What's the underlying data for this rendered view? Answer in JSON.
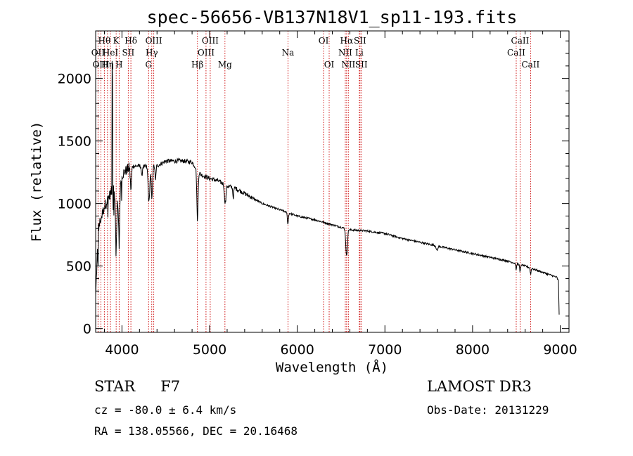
{
  "chart_data": {
    "type": "line",
    "title": "spec-56656-VB137N18V1_sp11-193.fits",
    "xlabel": "Wavelength (Å)",
    "ylabel": "Flux (relative)",
    "xlim": [
      3700,
      9100
    ],
    "ylim": [
      -30,
      2380
    ],
    "xticks": [
      4000,
      5000,
      6000,
      7000,
      8000,
      9000
    ],
    "yticks": [
      0,
      500,
      1000,
      1500,
      2000
    ],
    "x_minor_step": 200,
    "y_minor_step": 100,
    "grid": false,
    "colors": {
      "spectrum": "#000000",
      "line_markers": "#cc0000",
      "axes": "#000000"
    },
    "continuum": {
      "x": [
        3700,
        3730,
        3800,
        3870,
        3900,
        3950,
        4000,
        4100,
        4200,
        4300,
        4400,
        4500,
        4600,
        4700,
        4800,
        4900,
        5000,
        5100,
        5200,
        5300,
        5400,
        5600,
        5800,
        6000,
        6200,
        6400,
        6600,
        6800,
        7000,
        7200,
        7400,
        7600,
        7800,
        8000,
        8200,
        8400,
        8600,
        8800,
        8960,
        8980,
        8990
      ],
      "y": [
        250,
        800,
        980,
        1080,
        1120,
        1100,
        1230,
        1300,
        1300,
        1290,
        1300,
        1340,
        1340,
        1340,
        1330,
        1230,
        1200,
        1180,
        1140,
        1120,
        1080,
        1000,
        950,
        900,
        870,
        830,
        790,
        780,
        760,
        720,
        690,
        660,
        630,
        600,
        570,
        540,
        500,
        450,
        410,
        380,
        50
      ]
    },
    "absorption": [
      {
        "x": 3934,
        "w": 8,
        "d": 450
      },
      {
        "x": 3968,
        "w": 8,
        "d": 400
      },
      {
        "x": 4102,
        "w": 7,
        "d": 190
      },
      {
        "x": 4227,
        "w": 5,
        "d": 90
      },
      {
        "x": 4308,
        "w": 9,
        "d": 280
      },
      {
        "x": 4341,
        "w": 7,
        "d": 260
      },
      {
        "x": 4383,
        "w": 5,
        "d": 120
      },
      {
        "x": 4861,
        "w": 7,
        "d": 400
      },
      {
        "x": 5172,
        "w": 6,
        "d": 110
      },
      {
        "x": 5184,
        "w": 6,
        "d": 110
      },
      {
        "x": 5270,
        "w": 5,
        "d": 80
      },
      {
        "x": 5893,
        "w": 6,
        "d": 90
      },
      {
        "x": 6563,
        "w": 9,
        "d": 220
      },
      {
        "x": 7594,
        "w": 8,
        "d": 40
      },
      {
        "x": 8498,
        "w": 5,
        "d": 50
      },
      {
        "x": 8542,
        "w": 5,
        "d": 60
      },
      {
        "x": 8662,
        "w": 5,
        "d": 50
      }
    ],
    "spikes": [
      {
        "x": 3888,
        "h": 2140
      },
      {
        "x": 3892,
        "h": 2010
      }
    ],
    "noise": 22,
    "lines": [
      {
        "x": 3727,
        "label": "OII",
        "row": 1
      },
      {
        "x": 3760,
        "label": "OIII",
        "row": 2
      },
      {
        "x": 3799,
        "label": "Hθ",
        "row": 0
      },
      {
        "x": 3835,
        "label": "Hη",
        "row": 2
      },
      {
        "x": 3869,
        "label": "HeI",
        "row": 1
      },
      {
        "x": 3934,
        "label": "K",
        "row": 0
      },
      {
        "x": 3968,
        "label": "H",
        "row": 2
      },
      {
        "x": 4072,
        "label": "SII",
        "row": 1
      },
      {
        "x": 4102,
        "label": "Hδ",
        "row": 0
      },
      {
        "x": 4304,
        "label": "G",
        "row": 2
      },
      {
        "x": 4340,
        "label": "Hγ",
        "row": 1
      },
      {
        "x": 4363,
        "label": "OIII",
        "row": 0
      },
      {
        "x": 4861,
        "label": "Hβ",
        "row": 2
      },
      {
        "x": 4959,
        "label": "OIII",
        "row": 1
      },
      {
        "x": 5007,
        "label": "OIII",
        "row": 0
      },
      {
        "x": 5175,
        "label": "Mg",
        "row": 2
      },
      {
        "x": 5894,
        "label": "Na",
        "row": 1
      },
      {
        "x": 6300,
        "label": "OI",
        "row": 0
      },
      {
        "x": 6364,
        "label": "OI",
        "row": 2
      },
      {
        "x": 6548,
        "label": "NII",
        "row": 1
      },
      {
        "x": 6563,
        "label": "Hα",
        "row": 0
      },
      {
        "x": 6583,
        "label": "NII",
        "row": 2
      },
      {
        "x": 6708,
        "label": "Li",
        "row": 1
      },
      {
        "x": 6716,
        "label": "SII",
        "row": 0
      },
      {
        "x": 6731,
        "label": "SII",
        "row": 2
      },
      {
        "x": 8498,
        "label": "CaII",
        "row": 1
      },
      {
        "x": 8542,
        "label": "CaII",
        "row": 0
      },
      {
        "x": 8662,
        "label": "CaII",
        "row": 2
      }
    ]
  },
  "footer": {
    "object_class": "STAR",
    "subclass": "F7",
    "survey": "LAMOST DR3",
    "cz": "cz = -80.0 ± 6.4 km/s",
    "obs_date": "Obs-Date: 20131229",
    "radec": "RA = 138.05566, DEC =  20.16468"
  }
}
